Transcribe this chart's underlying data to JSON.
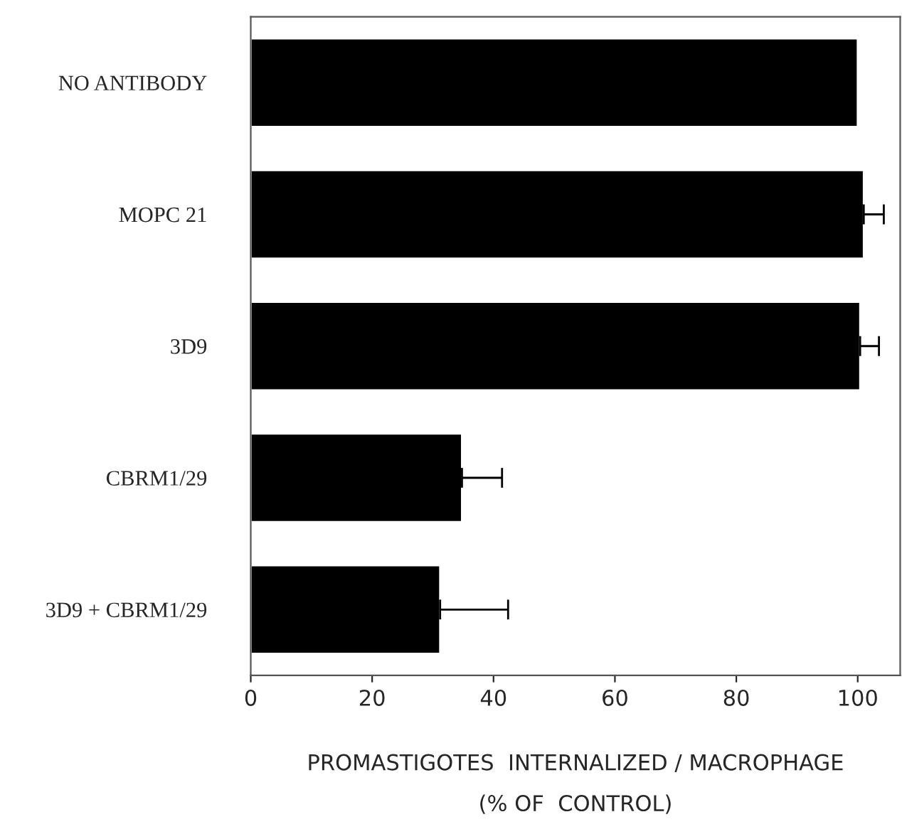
{
  "chart_data": {
    "type": "bar",
    "orientation": "horizontal",
    "xlabel": "PROMASTIGOTES  INTERNALIZED / MACROPHAGE\n(% OF  CONTROL)",
    "categories": [
      "NO ANTIBODY",
      "MOPC 21",
      "3D9",
      "CBRM1/29",
      "3D9 + CBRM1/29"
    ],
    "values": [
      100,
      101,
      100.4,
      34.8,
      31.2
    ],
    "errors": [
      null,
      [
        101,
        104.3
      ],
      [
        100.4,
        103.5
      ],
      [
        34.8,
        41.4
      ],
      [
        31.2,
        42.4
      ]
    ],
    "color": "#000000",
    "xlim": [
      0,
      107
    ],
    "xticks": [
      0,
      20,
      40,
      60,
      80,
      100
    ],
    "grid": false,
    "legend": false
  }
}
